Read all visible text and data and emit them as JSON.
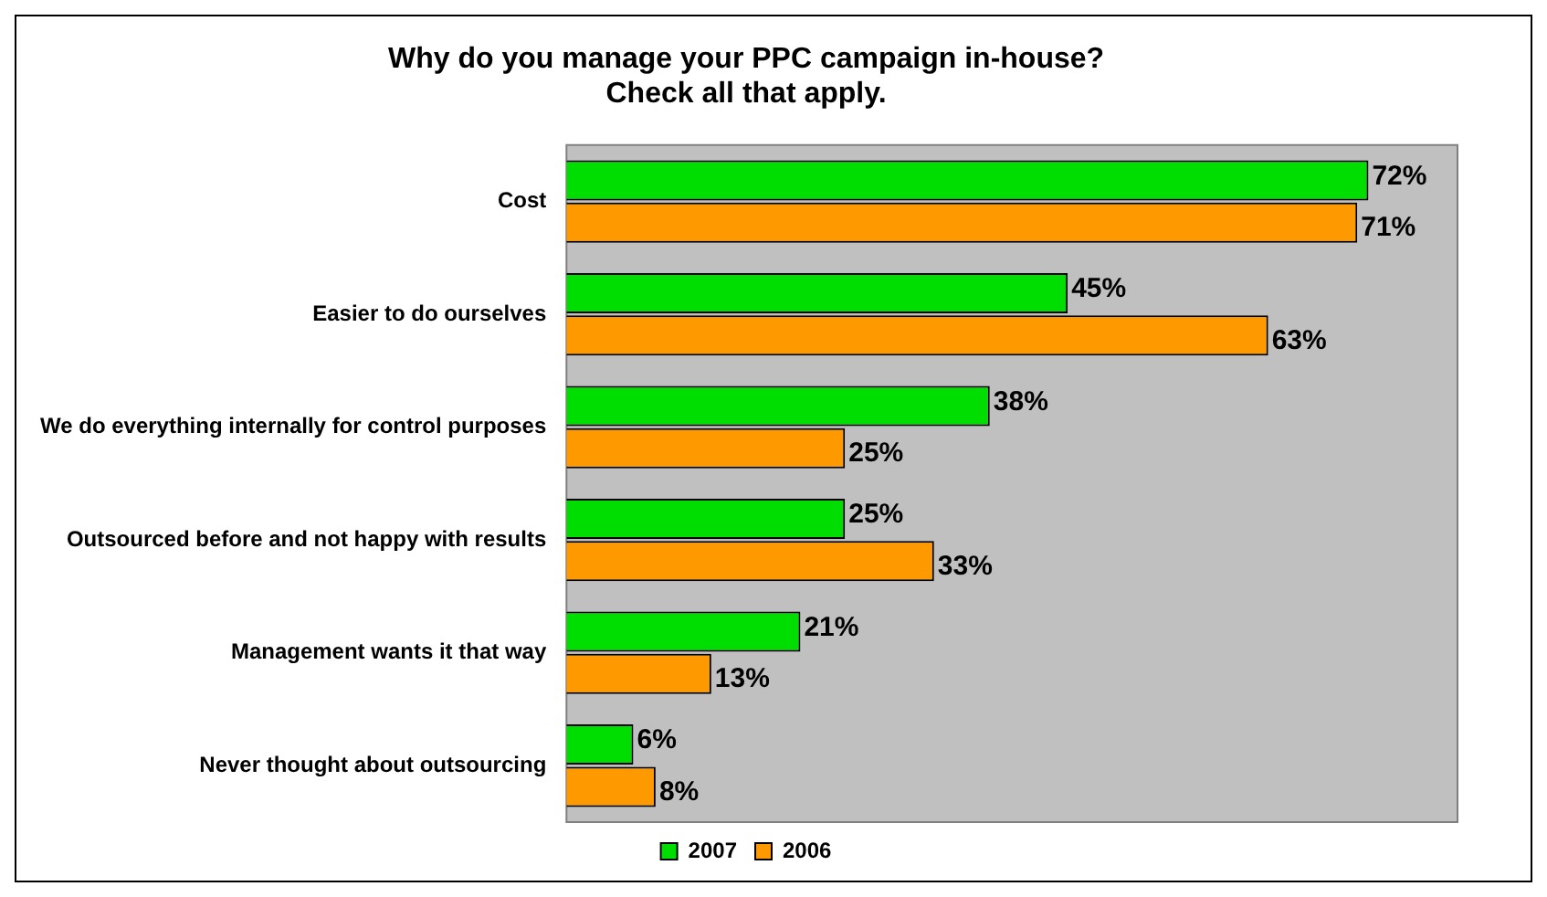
{
  "chart_data": {
    "type": "bar",
    "orientation": "horizontal",
    "title": [
      "Why do you manage your PPC campaign in-house?",
      "Check all that apply."
    ],
    "categories": [
      "Cost",
      "Easier to do ourselves",
      "We do everything internally for control purposes",
      "Outsourced before and not happy with results",
      "Management wants it that way",
      "Never thought about outsourcing"
    ],
    "series": [
      {
        "name": "2007",
        "color": "#00dd00",
        "values": [
          72,
          45,
          38,
          25,
          21,
          6
        ],
        "value_labels": [
          "72%",
          "45%",
          "38%",
          "25%",
          "21%",
          "6%"
        ]
      },
      {
        "name": "2006",
        "color": "#ff9900",
        "values": [
          71,
          63,
          25,
          33,
          13,
          8
        ],
        "value_labels": [
          "71%",
          "63%",
          "25%",
          "33%",
          "13%",
          "8%"
        ]
      }
    ],
    "legend": "bottom"
  }
}
